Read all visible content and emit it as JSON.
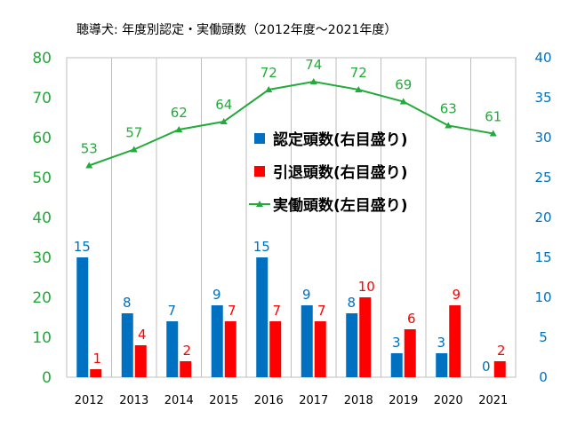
{
  "chart_data": {
    "type": "bar",
    "title": "聴導犬: 年度別認定・実働頭数（2012年度～2021年度）",
    "categories": [
      "2012",
      "2013",
      "2014",
      "2015",
      "2016",
      "2017",
      "2018",
      "2019",
      "2020",
      "2021"
    ],
    "series": [
      {
        "name": "認定頭数(右目盛り)",
        "type": "bar",
        "axis": "right",
        "color": "#0070C0",
        "values": [
          15,
          8,
          7,
          9,
          15,
          9,
          8,
          3,
          3,
          0
        ]
      },
      {
        "name": "引退頭数(右目盛り)",
        "type": "bar",
        "axis": "right",
        "color": "#FF0000",
        "values": [
          1,
          4,
          2,
          7,
          7,
          7,
          10,
          6,
          9,
          2
        ]
      },
      {
        "name": "実働頭数(左目盛り)",
        "type": "line",
        "axis": "left",
        "color": "#22AA3A",
        "marker": "triangle",
        "values": [
          53,
          57,
          62,
          64,
          72,
          74,
          72,
          69,
          63,
          61
        ]
      }
    ],
    "y_left": {
      "ylim": [
        0,
        80
      ],
      "ticks": [
        "0",
        "10",
        "20",
        "30",
        "40",
        "50",
        "60",
        "70",
        "80"
      ],
      "color": "#22AA3A"
    },
    "y_right": {
      "ylim": [
        0,
        40
      ],
      "ticks": [
        "0",
        "5",
        "10",
        "15",
        "20",
        "25",
        "30",
        "35",
        "40"
      ],
      "color": "#0070C0"
    },
    "grid": "vertical",
    "legend_position": "inside-center-right"
  }
}
